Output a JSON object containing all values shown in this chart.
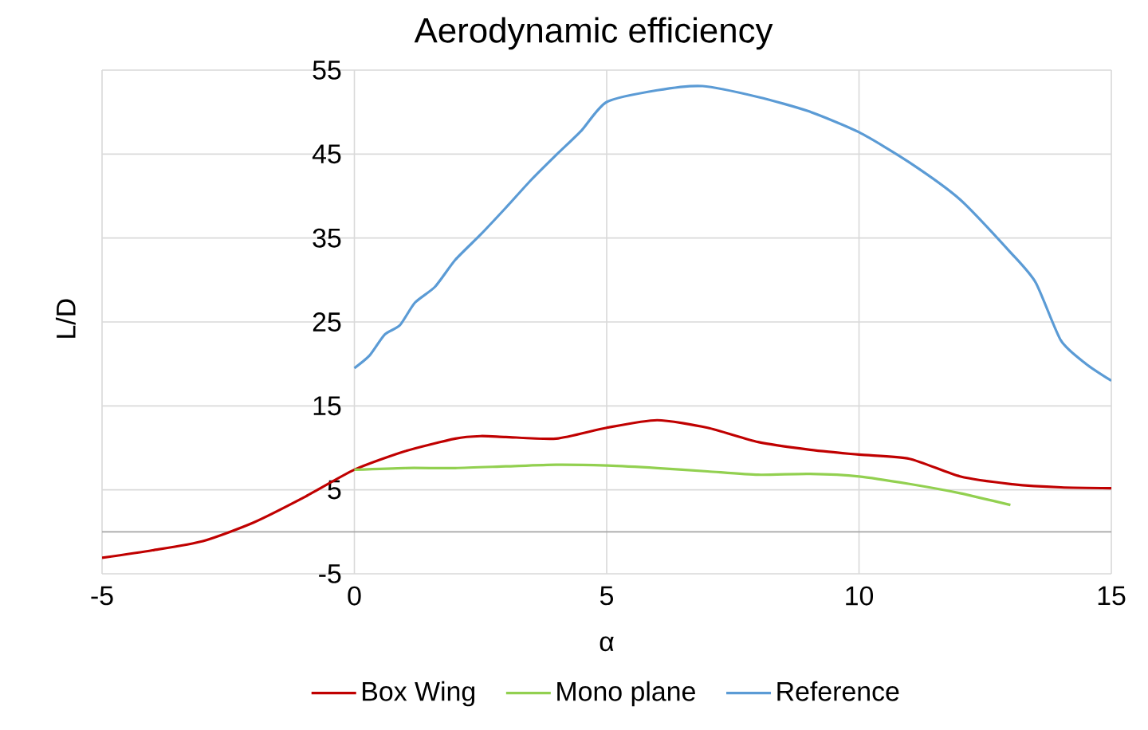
{
  "chart_data": {
    "type": "line",
    "title": "Aerodynamic efficiency",
    "xlabel": "α",
    "ylabel": "L/D",
    "xlim": [
      -5,
      15
    ],
    "xticks": [
      -5,
      0,
      5,
      10,
      15
    ],
    "ylim": [
      -5,
      55
    ],
    "yticks": [
      -5,
      5,
      15,
      25,
      35,
      45,
      55
    ],
    "grid": true,
    "legend": "bottom",
    "marker": "none",
    "line_style": "solid",
    "series": [
      {
        "name": "Box Wing",
        "color": "#c00000",
        "x": [
          -5,
          -4,
          -3,
          -2,
          -1,
          0,
          1,
          2,
          2.5,
          3,
          4,
          5,
          6,
          7,
          8,
          9,
          10,
          11,
          12,
          13,
          14,
          15
        ],
        "values": [
          -3.1,
          -2.2,
          -1.1,
          1.1,
          4.1,
          7.4,
          9.6,
          11.1,
          11.4,
          11.3,
          11.1,
          12.4,
          13.3,
          12.4,
          10.7,
          9.8,
          9.2,
          8.7,
          6.6,
          5.7,
          5.3,
          5.2
        ]
      },
      {
        "name": "Mono plane",
        "color": "#92d050",
        "x": [
          0,
          1,
          2,
          3,
          4,
          5,
          6,
          7,
          8,
          9,
          10,
          11,
          12,
          13
        ],
        "values": [
          7.4,
          7.6,
          7.6,
          7.8,
          8.0,
          7.9,
          7.6,
          7.2,
          6.8,
          6.9,
          6.6,
          5.7,
          4.6,
          3.2
        ]
      },
      {
        "name": "Reference",
        "color": "#5b9bd5",
        "x": [
          0,
          0.3,
          0.6,
          0.9,
          1.2,
          1.6,
          2,
          2.5,
          3,
          3.5,
          4,
          4.5,
          5,
          6,
          6.9,
          8,
          9,
          10,
          11,
          12,
          13,
          13.5,
          14,
          14.5,
          15
        ],
        "values": [
          19.5,
          21,
          23.5,
          24.6,
          27.3,
          29.2,
          32.4,
          35.4,
          38.6,
          41.9,
          44.9,
          47.8,
          51.2,
          52.6,
          53.1,
          51.8,
          50.1,
          47.6,
          44,
          39.6,
          33.3,
          29.7,
          22.8,
          20,
          18
        ]
      }
    ]
  }
}
